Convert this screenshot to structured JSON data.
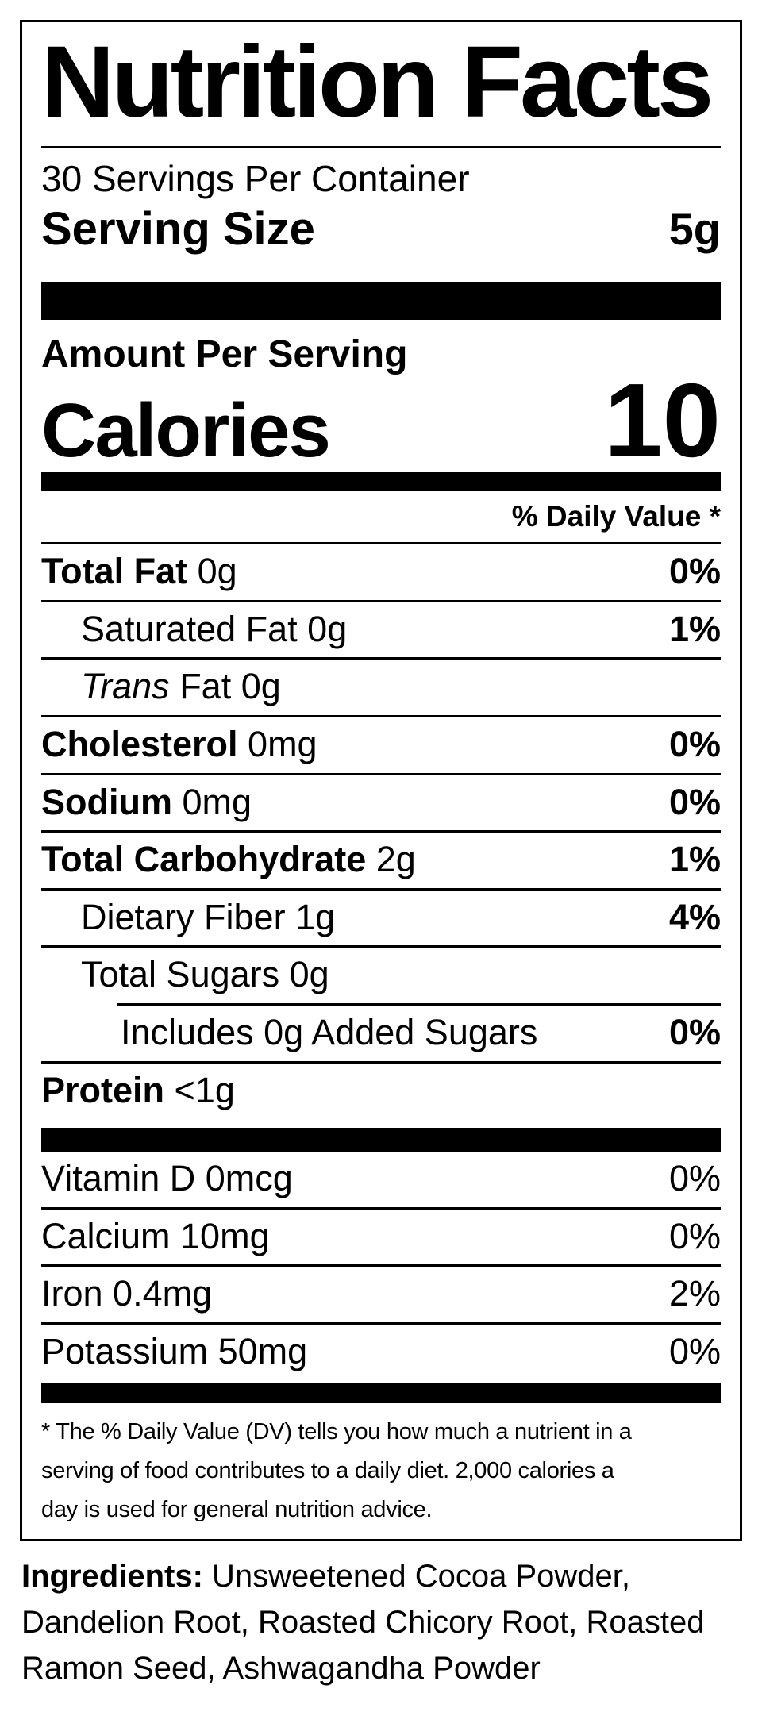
{
  "colors": {
    "text": "#000000",
    "background": "#ffffff",
    "bar": "#000000"
  },
  "label": {
    "title": "Nutrition Facts",
    "servings_per_container": "30 Servings Per Container",
    "serving_size_label": "Serving Size",
    "serving_size_value": "5g",
    "amount_per_serving": "Amount Per Serving",
    "calories_label": "Calories",
    "calories_value": "10",
    "daily_value_header": "% Daily Value *",
    "rows": [
      {
        "bold": "Total Fat",
        "italic": "",
        "rest": " 0g",
        "percent": "0%"
      },
      {
        "bold": "",
        "italic": "",
        "rest": "Saturated Fat 0g",
        "percent": "1%"
      },
      {
        "bold": "",
        "italic": "Trans",
        "rest": " Fat 0g",
        "percent": ""
      },
      {
        "bold": "Cholesterol",
        "italic": "",
        "rest": " 0mg",
        "percent": "0%"
      },
      {
        "bold": "Sodium",
        "italic": "",
        "rest": " 0mg",
        "percent": "0%"
      },
      {
        "bold": "Total Carbohydrate",
        "italic": "",
        "rest": " 2g",
        "percent": "1%"
      },
      {
        "bold": "",
        "italic": "",
        "rest": "Dietary Fiber 1g",
        "percent": "4%"
      },
      {
        "bold": "",
        "italic": "",
        "rest": "Total Sugars 0g",
        "percent": ""
      },
      {
        "bold": "",
        "italic": "",
        "rest": "Includes 0g Added Sugars",
        "percent": "0%"
      },
      {
        "bold": "Protein",
        "italic": "",
        "rest": " <1g",
        "percent": ""
      }
    ],
    "micronutrients": [
      {
        "name": "Vitamin D 0mcg",
        "percent": "0%"
      },
      {
        "name": "Calcium 10mg",
        "percent": "0%"
      },
      {
        "name": "Iron 0.4mg",
        "percent": "2%"
      },
      {
        "name": "Potassium 50mg",
        "percent": "0%"
      }
    ],
    "footnote_lines": [
      "* The % Daily Value (DV) tells you how much a nutrient in a",
      "serving of food contributes to a daily diet. 2,000 calories a",
      "day is used for general nutrition advice."
    ]
  },
  "ingredients": {
    "label": "Ingredients:",
    "line1_rest": " Unsweetened Cocoa Powder,",
    "line2": "Dandelion Root, Roasted Chicory Root, Roasted",
    "line3": "Ramon Seed, Ashwagandha Powder"
  }
}
